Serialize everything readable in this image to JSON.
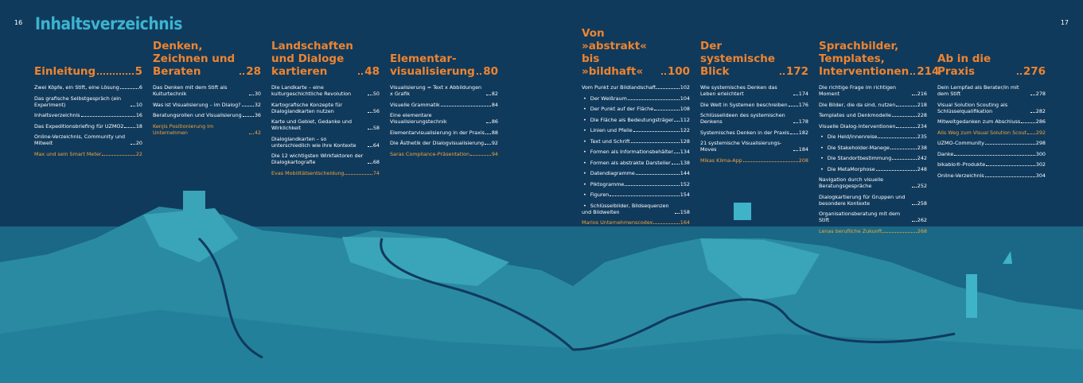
{
  "header": {
    "page_left": "16",
    "page_right": "17",
    "title": "Inhaltsverzeichnis"
  },
  "chapters": [
    {
      "title": "Einleitung",
      "page": "5",
      "entries": [
        {
          "text": "Zwei Köpfe, ein Stift, eine Lösung",
          "page": "6"
        },
        {
          "text": "Das grafische Selbstgespräch (ein Experiment)",
          "page": "10"
        },
        {
          "text": "Inhaltsverzeichnis",
          "page": "16"
        },
        {
          "text": "Das Expeditionsbriefing für UZMO2",
          "page": "18"
        },
        {
          "text": "Online-Verzeichnis, Community und Mitwelt",
          "page": "20"
        },
        {
          "text": "Max und sein Smart Meter",
          "page": "22",
          "highlight": true
        }
      ]
    },
    {
      "title": "Denken, Zeichnen und Beraten",
      "page": "28",
      "entries": [
        {
          "text": "Das Denken mit dem Stift als Kulturtechnik",
          "page": "30"
        },
        {
          "text": "Was ist Visualisierung – im Dialog?",
          "page": "32"
        },
        {
          "text": "Beratungsrollen und Visualisierung",
          "page": "36"
        },
        {
          "text": "Kenjis Positionierung im Unternehmen",
          "page": "42",
          "highlight": true
        }
      ]
    },
    {
      "title": "Landschaften und Dialoge kartieren",
      "page": "48",
      "entries": [
        {
          "text": "Die Landkarte – eine kulturgeschichtliche Revolution",
          "page": "50"
        },
        {
          "text": "Kartografische Konzepte für Dialoglandkarten nutzen",
          "page": "56"
        },
        {
          "text": "Karte und Gebiet, Gedanke und Wirklichkeit",
          "page": "58"
        },
        {
          "text": "Dialoglandkarten – so unterschiedlich wie ihre Kontexte",
          "page": "64"
        },
        {
          "text": "Die 12 wichtigsten Wirkfaktoren der Dialogkartografie",
          "page": "68"
        },
        {
          "text": "Evas Mobilitätsentscheidung",
          "page": "74",
          "highlight": true
        }
      ]
    },
    {
      "title": "Elementar-visualisierung",
      "page": "80",
      "entries": [
        {
          "text": "Visualisierung = Text x Abbildungen x Grafik",
          "page": "82"
        },
        {
          "text": "Visuelle Grammatik",
          "page": "84"
        },
        {
          "text": "Eine elementare Visualisierungstechnik",
          "page": "86"
        },
        {
          "text": "Elementarvisualisierung in der Praxis",
          "page": "88"
        },
        {
          "text": "Die Ästhetik der Dialogvisualisierung",
          "page": "92"
        },
        {
          "text": "Saras Compliance-Präsentation",
          "page": "94",
          "highlight": true
        }
      ]
    },
    {
      "title": "Von »abstrakt« bis »bildhaft«",
      "page": "100",
      "entries": [
        {
          "text": "Vom Punkt zur Bildlandschaft",
          "page": "102"
        },
        {
          "text": "Der Weißraum",
          "page": "104",
          "sub": true
        },
        {
          "text": "Der Punkt auf der Fläche",
          "page": "108",
          "sub": true
        },
        {
          "text": "Die Fläche als Bedeutungsträger",
          "page": "112",
          "sub": true
        },
        {
          "text": "Linien und Pfeile",
          "page": "122",
          "sub": true
        },
        {
          "text": "Text und Schrift",
          "page": "128",
          "sub": true
        },
        {
          "text": "Formen als Informationsbehälter",
          "page": "134",
          "sub": true
        },
        {
          "text": "Formen als abstrakte Darsteller",
          "page": "138",
          "sub": true
        },
        {
          "text": "Datendiagramme",
          "page": "144",
          "sub": true
        },
        {
          "text": "Piktogramme",
          "page": "152",
          "sub": true
        },
        {
          "text": "Figuren",
          "page": "154",
          "sub": true
        },
        {
          "text": "Schlüsselbilder, Bildsequenzen und Bildwelten",
          "page": "158",
          "sub": true
        },
        {
          "text": "Marios Unternehmenscodex",
          "page": "164",
          "highlight": true
        }
      ]
    },
    {
      "title": "Der systemische Blick",
      "page": "172",
      "entries": [
        {
          "text": "Wie systemisches Denken das Leben erleichtert",
          "page": "174"
        },
        {
          "text": "Die Welt in Systemen beschreiben",
          "page": "176"
        },
        {
          "text": "Schlüsselideen des systemischen Denkens",
          "page": "178"
        },
        {
          "text": "Systemisches Denken in der Praxis",
          "page": "182"
        },
        {
          "text": "21 systemische Visualisierungs-Moves",
          "page": "184"
        },
        {
          "text": "Mikas Klima-App",
          "page": "208",
          "highlight": true
        }
      ]
    },
    {
      "title": "Sprachbilder, Templates, Interventionen",
      "page": "214",
      "entries": [
        {
          "text": "Die richtige Frage im richtigen Moment",
          "page": "216"
        },
        {
          "text": "Die Bilder, die da sind, nutzen",
          "page": "218"
        },
        {
          "text": "Templates und Denkmodelle",
          "page": "228"
        },
        {
          "text": "Visuelle Dialog-Interventionen",
          "page": "234"
        },
        {
          "text": "Die Held/innenreise",
          "page": "235",
          "sub": true
        },
        {
          "text": "Die Stakeholder-Manege",
          "page": "238",
          "sub": true
        },
        {
          "text": "Die Standortbestimmung",
          "page": "242",
          "sub": true
        },
        {
          "text": "Die MetaMorphose",
          "page": "248",
          "sub": true
        },
        {
          "text": "Navigation durch visuelle Beratungsgespräche",
          "page": "252"
        },
        {
          "text": "Dialogkartierung für Gruppen und besondere Kontexte",
          "page": "258"
        },
        {
          "text": "Organisationsberatung mit dem Stift",
          "page": "262"
        },
        {
          "text": "Lenas berufliche Zukunft",
          "page": "268",
          "highlight": true
        }
      ]
    },
    {
      "title": "Ab in die Praxis",
      "page": "276",
      "entries": [
        {
          "text": "Dein Lernpfad als Berater/in mit dem Stift",
          "page": "278"
        },
        {
          "text": "Visual Solution Scouting als Schlüsselqualifikation",
          "page": "282"
        },
        {
          "text": "Mitweltgedanken zum Abschluss",
          "page": "286"
        },
        {
          "text": "Alis Weg zum Visual Solution Scout",
          "page": "292",
          "highlight": true
        },
        {
          "text": "UZMO-Community",
          "page": "298"
        },
        {
          "text": "Danke",
          "page": "300"
        },
        {
          "text": "bikablo®-Produkte",
          "page": "302"
        },
        {
          "text": "Online-Verzeichnis",
          "page": "304"
        }
      ]
    }
  ]
}
